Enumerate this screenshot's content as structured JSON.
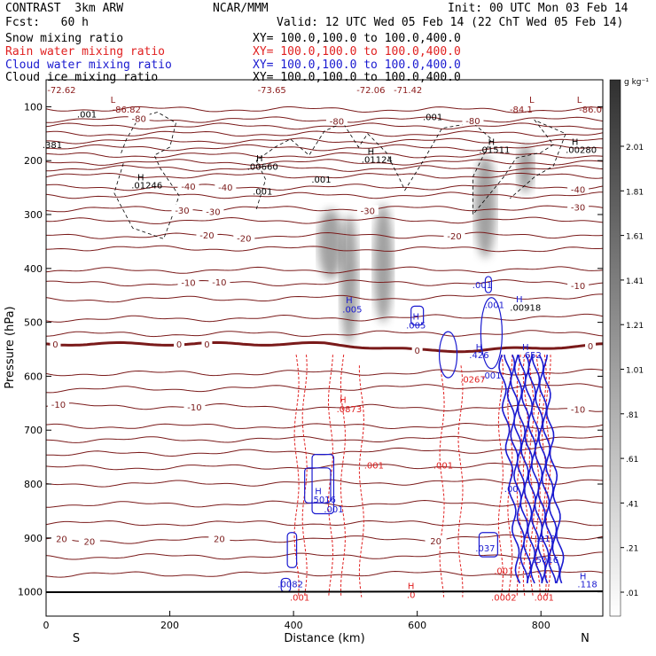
{
  "header": {
    "model": "CONTRAST  3km ARW",
    "org": "NCAR/MMM",
    "init": "Init: 00 UTC Mon 03 Feb 14",
    "fcst": "Fcst:   60 h",
    "valid": "Valid: 12 UTC Wed 05 Feb 14 (22 ChT Wed 05 Feb 14)",
    "fields": [
      {
        "name": "Snow mixing ratio",
        "xy": "XY= 100.0,100.0 to 100.0,400.0",
        "color": "#000000"
      },
      {
        "name": "Rain water mixing ratio",
        "xy": "XY= 100.0,100.0 to 100.0,400.0",
        "color": "#e02020"
      },
      {
        "name": "Cloud water mixing ratio",
        "xy": "XY= 100.0,100.0 to 100.0,400.0",
        "color": "#1a1ad0"
      },
      {
        "name": "Cloud ice mixing ratio",
        "xy": "XY= 100.0,100.0 to 100.0,400.0",
        "color": "#000000"
      }
    ]
  },
  "chart_data": {
    "type": "cross-section",
    "xlabel": "Distance (km)",
    "ylabel": "Pressure (hPa)",
    "xlim": [
      0,
      900
    ],
    "ylim": [
      50,
      1045
    ],
    "x_ticks": [
      0,
      200,
      400,
      600,
      800
    ],
    "y_ticks": [
      100,
      200,
      300,
      400,
      500,
      600,
      700,
      800,
      900,
      1000
    ],
    "endpoints": {
      "left": "S",
      "right": "N"
    },
    "colorbar": {
      "unit": "g kg⁻¹",
      "labels": [
        "2.01",
        "1.81",
        "1.61",
        "1.41",
        "1.21",
        "1.01",
        ".81",
        ".61",
        ".41",
        ".21",
        ".01"
      ]
    },
    "temperature_lines": [
      {
        "p0": 104,
        "p1": 106
      },
      {
        "p0": 124,
        "p1": 124,
        "label": "-80",
        "labels_at": [
          150,
          470,
          690
        ]
      },
      {
        "p0": 136,
        "p1": 136
      },
      {
        "p0": 150,
        "p1": 150
      },
      {
        "p0": 163,
        "p1": 164
      },
      {
        "p0": 176,
        "p1": 176
      },
      {
        "p0": 190,
        "p1": 190
      },
      {
        "p0": 203,
        "p1": 203
      },
      {
        "p0": 214,
        "p1": 215
      },
      {
        "p0": 228,
        "p1": 228
      },
      {
        "p0": 250,
        "p1": 248,
        "label": "-40",
        "labels_at": [
          230,
          290,
          860
        ]
      },
      {
        "p0": 265,
        "p1": 264
      },
      {
        "p0": 290,
        "p1": 288,
        "label": "-30",
        "labels_at": [
          220,
          270,
          520,
          860
        ]
      },
      {
        "p0": 312,
        "p1": 310
      },
      {
        "p0": 340,
        "p1": 338,
        "label": "-20",
        "labels_at": [
          260,
          320,
          660
        ]
      },
      {
        "p0": 362,
        "p1": 365
      },
      {
        "p0": 404,
        "p1": 402
      },
      {
        "p0": 428,
        "p1": 426,
        "label": "-10",
        "labels_at": [
          230,
          280,
          860
        ]
      },
      {
        "p0": 458,
        "p1": 452
      },
      {
        "p0": 494,
        "p1": 490
      },
      {
        "p0": 522,
        "p1": 520
      }
    ],
    "zero_line": {
      "label": "0",
      "labels_at": [
        15,
        215,
        260,
        600,
        880
      ]
    },
    "lower_lines": [
      {
        "p0": 595,
        "p1": 592
      },
      {
        "p0": 625,
        "p1": 618
      },
      {
        "p0": 655,
        "p1": 660,
        "label": "-10",
        "labels_at": [
          20,
          240,
          860
        ]
      },
      {
        "p0": 693,
        "p1": 692
      },
      {
        "p0": 718,
        "p1": 716
      },
      {
        "p0": 745,
        "p1": 735
      },
      {
        "p0": 770,
        "p1": 765
      },
      {
        "p0": 800,
        "p1": 795
      },
      {
        "p0": 838,
        "p1": 835
      },
      {
        "p0": 873,
        "p1": 872
      },
      {
        "p0": 906,
        "p1": 898,
        "label": "20",
        "labels_at": [
          25,
          70,
          280,
          630
        ]
      },
      {
        "p0": 935,
        "p1": 932
      },
      {
        "p0": 968,
        "p1": 965
      }
    ],
    "extremes": [
      {
        "text": "-72.62",
        "x": 25,
        "p": 68,
        "color": "#8b1a1a"
      },
      {
        "text": "L",
        "x": 108,
        "p": 86,
        "color": "#8b1a1a"
      },
      {
        "text": "-86.82",
        "x": 130,
        "p": 104,
        "color": "#8b1a1a"
      },
      {
        "text": "-73.65",
        "x": 365,
        "p": 68,
        "color": "#8b1a1a"
      },
      {
        "text": "-72.06",
        "x": 525,
        "p": 68,
        "color": "#8b1a1a"
      },
      {
        "text": "-71.42",
        "x": 585,
        "p": 68,
        "color": "#8b1a1a"
      },
      {
        "text": "L",
        "x": 785,
        "p": 86,
        "color": "#8b1a1a"
      },
      {
        "text": "-84.1",
        "x": 768,
        "p": 104,
        "color": "#8b1a1a"
      },
      {
        "text": "L",
        "x": 862,
        "p": 86,
        "color": "#8b1a1a"
      },
      {
        "text": "-86.0",
        "x": 880,
        "p": 104,
        "color": "#8b1a1a"
      },
      {
        "text": ".001",
        "x": 66,
        "p": 113,
        "color": "#000000"
      },
      {
        "text": ".001",
        "x": 625,
        "p": 118,
        "color": "#000000"
      },
      {
        "text": ".381",
        "x": 10,
        "p": 170,
        "color": "#000000"
      },
      {
        "text": "H",
        "x": 153,
        "p": 230,
        "color": "#000000"
      },
      {
        "text": ".01246",
        "x": 163,
        "p": 245,
        "color": "#000000"
      },
      {
        "text": "H",
        "x": 345,
        "p": 195,
        "color": "#000000"
      },
      {
        "text": ".00660",
        "x": 350,
        "p": 210,
        "color": "#000000"
      },
      {
        "text": ".001",
        "x": 445,
        "p": 234,
        "color": "#000000"
      },
      {
        "text": ".001",
        "x": 350,
        "p": 256,
        "color": "#000000"
      },
      {
        "text": "H",
        "x": 525,
        "p": 182,
        "color": "#000000"
      },
      {
        "text": ".01124",
        "x": 535,
        "p": 197,
        "color": "#000000"
      },
      {
        "text": "H",
        "x": 720,
        "p": 164,
        "color": "#000000"
      },
      {
        "text": ".01511",
        "x": 725,
        "p": 179,
        "color": "#000000"
      },
      {
        "text": "H",
        "x": 855,
        "p": 164,
        "color": "#000000"
      },
      {
        "text": ".00280",
        "x": 865,
        "p": 179,
        "color": "#000000"
      },
      {
        "text": "H",
        "x": 490,
        "p": 458,
        "color": "#1a1ad0"
      },
      {
        "text": ".005",
        "x": 495,
        "p": 475,
        "color": "#1a1ad0"
      },
      {
        "text": "H",
        "x": 598,
        "p": 488,
        "color": "#1a1ad0"
      },
      {
        "text": ".005",
        "x": 598,
        "p": 505,
        "color": "#1a1ad0"
      },
      {
        "text": ".001",
        "x": 705,
        "p": 430,
        "color": "#1a1ad0"
      },
      {
        "text": ".001",
        "x": 725,
        "p": 467,
        "color": "#1a1ad0"
      },
      {
        "text": "H",
        "x": 765,
        "p": 456,
        "color": "#1a1ad0"
      },
      {
        "text": ".00918",
        "x": 775,
        "p": 472,
        "color": "#000000"
      },
      {
        "text": "H",
        "x": 700,
        "p": 545,
        "color": "#1a1ad0"
      },
      {
        "text": ".426",
        "x": 700,
        "p": 560,
        "color": "#1a1ad0"
      },
      {
        "text": "H",
        "x": 775,
        "p": 545,
        "color": "#1a1ad0"
      },
      {
        "text": ".652",
        "x": 785,
        "p": 560,
        "color": "#1a1ad0"
      },
      {
        "text": ".0267",
        "x": 690,
        "p": 605,
        "color": "#e02020"
      },
      {
        "text": ".001",
        "x": 720,
        "p": 598,
        "color": "#1a1ad0"
      },
      {
        "text": "H",
        "x": 480,
        "p": 643,
        "color": "#e02020"
      },
      {
        "text": ".0873",
        "x": 490,
        "p": 660,
        "color": "#e02020"
      },
      {
        "text": ".001",
        "x": 530,
        "p": 765,
        "color": "#e02020"
      },
      {
        "text": ".001",
        "x": 642,
        "p": 765,
        "color": "#e02020"
      },
      {
        "text": ".00",
        "x": 752,
        "p": 808,
        "color": "#1a1ad0"
      },
      {
        "text": "H",
        "x": 440,
        "p": 812,
        "color": "#1a1ad0"
      },
      {
        "text": ".5016",
        "x": 448,
        "p": 828,
        "color": "#1a1ad0"
      },
      {
        "text": ".001",
        "x": 465,
        "p": 846,
        "color": "#1a1ad0"
      },
      {
        "text": ".037",
        "x": 710,
        "p": 918,
        "color": "#1a1ad0"
      },
      {
        "text": ".919",
        "x": 808,
        "p": 900,
        "color": "#1a1ad0"
      },
      {
        "text": ".5016",
        "x": 808,
        "p": 940,
        "color": "#1a1ad0"
      },
      {
        "text": ".001",
        "x": 740,
        "p": 960,
        "color": "#e02020"
      },
      {
        "text": ".0082",
        "x": 395,
        "p": 985,
        "color": "#1a1ad0"
      },
      {
        "text": ".001",
        "x": 410,
        "p": 1010,
        "color": "#e02020"
      },
      {
        "text": "H",
        "x": 590,
        "p": 988,
        "color": "#e02020"
      },
      {
        "text": ".0",
        "x": 590,
        "p": 1005,
        "color": "#e02020"
      },
      {
        "text": ".0002",
        "x": 740,
        "p": 1010,
        "color": "#e02020"
      },
      {
        "text": ".001",
        "x": 805,
        "p": 1010,
        "color": "#e02020"
      },
      {
        "text": "H",
        "x": 868,
        "p": 970,
        "color": "#1a1ad0"
      },
      {
        "text": ".118",
        "x": 875,
        "p": 985,
        "color": "#1a1ad0"
      }
    ],
    "shaded_maxima": [
      {
        "x": 460,
        "p1": 290,
        "p2": 420,
        "w": 14
      },
      {
        "x": 490,
        "p1": 300,
        "p2": 540,
        "w": 10
      },
      {
        "x": 545,
        "p1": 280,
        "p2": 500,
        "w": 11
      },
      {
        "x": 710,
        "p1": 190,
        "p2": 380,
        "w": 12
      },
      {
        "x": 775,
        "p1": 170,
        "p2": 260,
        "w": 9
      }
    ],
    "cloud_ice_outline": [
      [
        125,
        205
      ],
      [
        110,
        260
      ],
      [
        140,
        325
      ],
      [
        190,
        345
      ],
      [
        205,
        300
      ],
      [
        215,
        265
      ],
      [
        185,
        215
      ],
      [
        175,
        190
      ],
      [
        200,
        175
      ],
      [
        210,
        130
      ],
      [
        180,
        110
      ],
      [
        150,
        120
      ],
      [
        130,
        160
      ],
      [
        120,
        190
      ]
    ],
    "cloud_ice_outline2": [
      [
        340,
        290
      ],
      [
        355,
        235
      ],
      [
        340,
        200
      ],
      [
        370,
        175
      ],
      [
        395,
        160
      ],
      [
        425,
        190
      ],
      [
        450,
        145
      ],
      [
        480,
        130
      ],
      [
        505,
        175
      ],
      [
        520,
        150
      ],
      [
        550,
        185
      ],
      [
        570,
        230
      ],
      [
        580,
        255
      ],
      [
        610,
        200
      ],
      [
        640,
        140
      ],
      [
        690,
        130
      ],
      [
        720,
        160
      ],
      [
        690,
        230
      ],
      [
        690,
        300
      ],
      [
        740,
        230
      ],
      [
        760,
        195
      ],
      [
        800,
        185
      ],
      [
        820,
        170
      ],
      [
        790,
        125
      ],
      [
        840,
        150
      ],
      [
        820,
        210
      ],
      [
        790,
        230
      ],
      [
        750,
        270
      ]
    ],
    "cloud_water_boxes": [
      {
        "x1": 418,
        "x2": 460,
        "p1": 770,
        "p2": 835
      },
      {
        "x1": 430,
        "x2": 465,
        "p1": 745,
        "p2": 855
      },
      {
        "x1": 390,
        "x2": 405,
        "p1": 890,
        "p2": 955
      },
      {
        "x1": 380,
        "x2": 395,
        "p1": 975,
        "p2": 1000
      },
      {
        "x1": 590,
        "x2": 610,
        "p1": 470,
        "p2": 505
      },
      {
        "x1": 710,
        "x2": 720,
        "p1": 415,
        "p2": 445
      },
      {
        "x1": 700,
        "x2": 730,
        "p1": 890,
        "p2": 935
      }
    ],
    "rain_lines_x": [
      405,
      418,
      460,
      480,
      510,
      640,
      670,
      735,
      750,
      765,
      775,
      785,
      795,
      805,
      812
    ],
    "cloud_water_core_x": [
      735,
      745,
      752,
      760,
      768,
      775,
      782,
      790,
      798,
      806
    ]
  }
}
